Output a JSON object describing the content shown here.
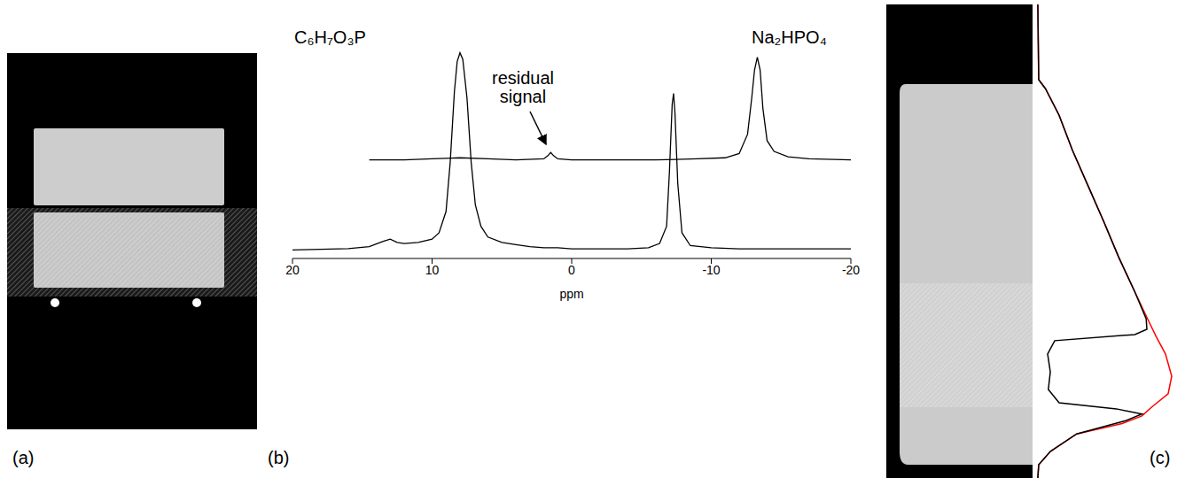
{
  "panel_labels": [
    "(a)",
    "(b)",
    "(c)"
  ],
  "chart_data": [
    {
      "type": "line",
      "xlabel": "ppm",
      "xlim": [
        20,
        -20
      ],
      "xticks": [
        20,
        10,
        0,
        -10,
        -20
      ],
      "ylim": [
        0,
        100
      ],
      "tick_labels": "x",
      "grid": false,
      "annotations": [
        {
          "text": "C₆H₇O₃P"
        },
        {
          "text": "Na₂HPO₄"
        },
        {
          "text": "residual signal"
        }
      ],
      "series": [
        {
          "color": "#000000",
          "x": [
            20,
            18,
            16,
            14.5,
            13.5,
            13,
            12.5,
            12,
            11,
            10,
            9.5,
            9,
            8.7,
            8.4,
            8.2,
            8.0,
            7.8,
            7.5,
            7.2,
            6.9,
            6.5,
            6,
            5,
            4,
            3,
            2,
            1,
            0,
            -2,
            -4,
            -5.5,
            -6.3,
            -6.8,
            -7.0,
            -7.2,
            -7.3,
            -7.4,
            -7.6,
            -7.9,
            -8.5,
            -10,
            -12,
            -15,
            -18,
            -20
          ],
          "values": [
            4,
            4.3,
            4.6,
            5.5,
            8,
            9,
            7.5,
            7,
            7.5,
            9,
            12,
            22,
            45,
            78,
            92,
            96,
            93,
            75,
            45,
            25,
            15,
            10,
            7.5,
            6.5,
            5.5,
            5,
            5,
            4.5,
            4.5,
            4.5,
            5,
            7,
            15,
            40,
            72,
            77,
            68,
            35,
            12,
            6,
            5,
            4.5,
            4.5,
            4.5,
            4.5
          ]
        },
        {
          "color": "#000000",
          "x": [
            14.5,
            12,
            10,
            8,
            6,
            4,
            2,
            1.7,
            1.5,
            1.3,
            1,
            0,
            -3,
            -6,
            -9,
            -11,
            -12,
            -12.6,
            -12.9,
            -13.1,
            -13.3,
            -13.5,
            -13.7,
            -14,
            -14.5,
            -15.5,
            -17,
            -20
          ],
          "values": [
            46,
            46,
            46.5,
            47,
            46.5,
            46,
            46.5,
            48,
            49.5,
            48,
            46.5,
            46,
            46,
            46,
            46.5,
            47,
            49,
            58,
            75,
            88,
            94,
            88,
            70,
            55,
            50,
            47.5,
            46.5,
            46
          ]
        }
      ]
    },
    {
      "type": "line",
      "orientation": "horizontal",
      "tick_labels": false,
      "grid": false,
      "xlim": [
        0,
        100
      ],
      "ylim": [
        0,
        100
      ],
      "series": [
        {
          "color": "#ff0000",
          "x": [
            0,
            15.9,
            17.8,
            23.4,
            30.8,
            38.3,
            45.8,
            53.3,
            60.7,
            66.4,
            70.1,
            73.8,
            78.5,
            82.2,
            85,
            86.9,
            88.5,
            90.7,
            94.4,
            97.2,
            100
          ],
          "values": [
            0.6,
            1.2,
            6,
            15.6,
            25,
            36,
            47,
            57.5,
            69,
            78,
            84,
            90.6,
            95,
            92.5,
            81,
            74,
            60,
            28,
            9.4,
            1.2,
            0.6
          ]
        },
        {
          "color": "#000000",
          "x": [
            0,
            15.9,
            17.8,
            23.4,
            30.8,
            38.3,
            45.8,
            53.3,
            60.7,
            66.4,
            68.6,
            69.7,
            71,
            73.8,
            77.6,
            81.3,
            84.1,
            85.4,
            86.5,
            87.9,
            90.7,
            94.4,
            97.2,
            100
          ],
          "values": [
            0.6,
            1.2,
            6,
            15.6,
            25,
            36,
            47,
            57.5,
            69,
            77,
            77.5,
            69,
            12.5,
            7.5,
            9.4,
            8,
            15.6,
            56,
            74,
            62.5,
            28,
            9.4,
            1.2,
            0.6
          ]
        }
      ]
    }
  ]
}
